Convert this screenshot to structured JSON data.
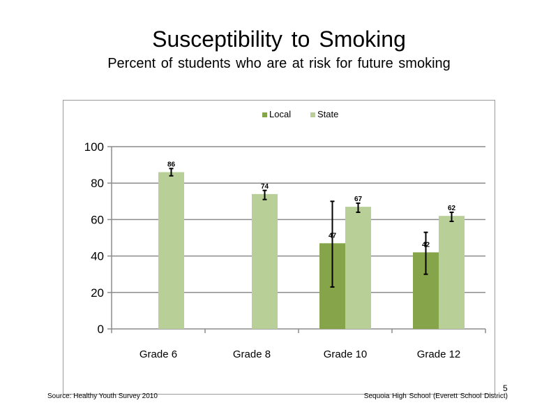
{
  "slide": {
    "title": "Susceptibility to Smoking",
    "subtitle": "Percent of students who are at risk for future smoking",
    "source": "Source: Healthy Youth Survey 2010",
    "school": "Sequoia High School (Everett School District)",
    "page_number": "5"
  },
  "chart_data": {
    "type": "bar",
    "title": "",
    "xlabel": "",
    "ylabel": "",
    "categories": [
      "Grade 6",
      "Grade 8",
      "Grade 10",
      "Grade 12"
    ],
    "ylim": [
      0,
      100
    ],
    "yticks": [
      0,
      20,
      40,
      60,
      80,
      100
    ],
    "grid": true,
    "legend_position": "top-center",
    "series": [
      {
        "name": "Local",
        "color": "#86a44a",
        "values": [
          null,
          null,
          47,
          42
        ],
        "labels": [
          "",
          "",
          "47",
          "42"
        ],
        "error_low": [
          null,
          null,
          23,
          30
        ],
        "error_high": [
          null,
          null,
          70,
          53
        ]
      },
      {
        "name": "State",
        "color": "#b8cf97",
        "values": [
          86,
          74,
          67,
          62
        ],
        "labels": [
          "86",
          "74",
          "67",
          "62"
        ],
        "error_low": [
          84,
          71,
          64,
          59
        ],
        "error_high": [
          88,
          76,
          69,
          64
        ]
      }
    ]
  }
}
